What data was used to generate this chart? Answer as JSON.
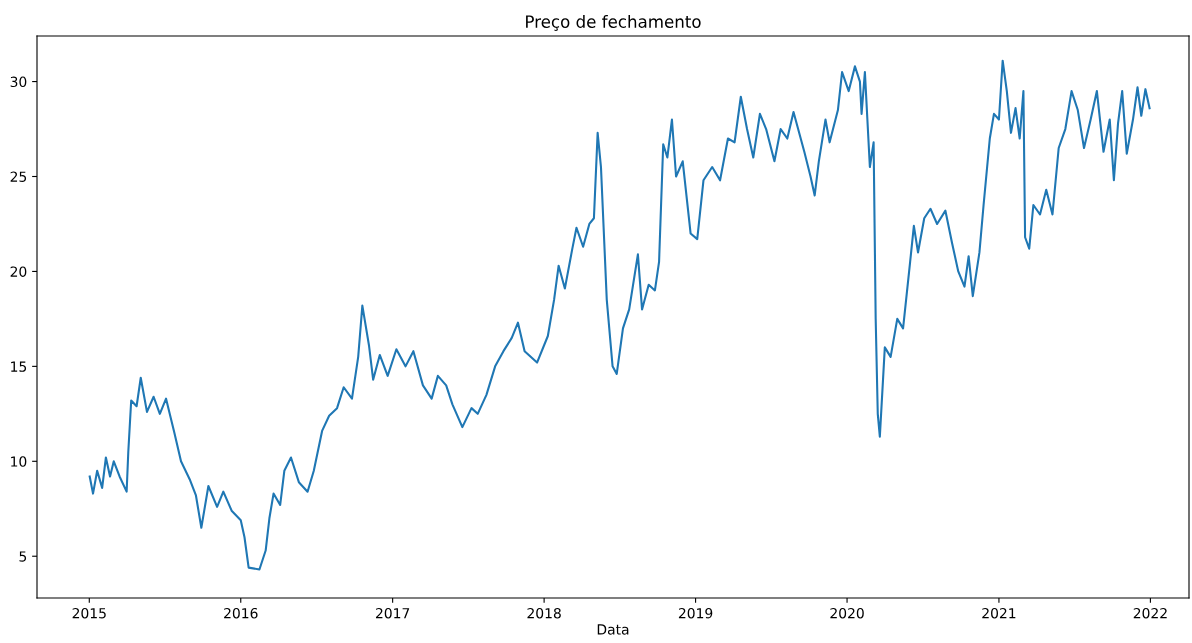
{
  "chart_data": {
    "type": "line",
    "title": "Preço de fechamento",
    "xlabel": "Data",
    "xlim": [
      "2014-08-28",
      "2022-04-04"
    ],
    "ylim": [
      2.8,
      32.4
    ],
    "xticks": [
      {
        "value": "2015",
        "label": "2015"
      },
      {
        "value": "2016",
        "label": "2016"
      },
      {
        "value": "2017",
        "label": "2017"
      },
      {
        "value": "2018",
        "label": "2018"
      },
      {
        "value": "2019",
        "label": "2019"
      },
      {
        "value": "2020",
        "label": "2020"
      },
      {
        "value": "2021",
        "label": "2021"
      },
      {
        "value": "2022",
        "label": "2022"
      }
    ],
    "yticks": [
      5,
      10,
      15,
      20,
      25,
      30
    ],
    "grid": false,
    "legend": false,
    "x": [
      "2015-01-02",
      "2015-01-10",
      "2015-01-20",
      "2015-02-01",
      "2015-02-10",
      "2015-02-20",
      "2015-03-01",
      "2015-03-15",
      "2015-04-01",
      "2015-04-05",
      "2015-04-12",
      "2015-04-25",
      "2015-05-05",
      "2015-05-20",
      "2015-06-05",
      "2015-06-20",
      "2015-07-05",
      "2015-07-25",
      "2015-08-10",
      "2015-09-01",
      "2015-09-15",
      "2015-09-28",
      "2015-10-15",
      "2015-11-05",
      "2015-11-20",
      "2015-12-10",
      "2016-01-01",
      "2016-01-10",
      "2016-01-20",
      "2016-02-15",
      "2016-03-01",
      "2016-03-10",
      "2016-03-20",
      "2016-04-05",
      "2016-04-15",
      "2016-05-01",
      "2016-05-20",
      "2016-06-10",
      "2016-06-25",
      "2016-07-15",
      "2016-08-01",
      "2016-08-20",
      "2016-09-05",
      "2016-09-25",
      "2016-10-10",
      "2016-10-20",
      "2016-11-05",
      "2016-11-15",
      "2016-12-01",
      "2016-12-20",
      "2017-01-10",
      "2017-02-01",
      "2017-02-20",
      "2017-03-15",
      "2017-04-05",
      "2017-04-20",
      "2017-05-10",
      "2017-05-25",
      "2017-06-18",
      "2017-07-10",
      "2017-07-25",
      "2017-08-15",
      "2017-09-05",
      "2017-09-25",
      "2017-10-15",
      "2017-10-30",
      "2017-11-15",
      "2017-12-15",
      "2018-01-10",
      "2018-01-25",
      "2018-02-05",
      "2018-02-20",
      "2018-03-10",
      "2018-03-20",
      "2018-04-05",
      "2018-04-20",
      "2018-05-01",
      "2018-05-10",
      "2018-05-18",
      "2018-06-01",
      "2018-06-15",
      "2018-06-25",
      "2018-07-10",
      "2018-07-25",
      "2018-08-15",
      "2018-08-25",
      "2018-09-10",
      "2018-09-25",
      "2018-10-05",
      "2018-10-15",
      "2018-10-25",
      "2018-11-05",
      "2018-11-15",
      "2018-12-01",
      "2018-12-20",
      "2019-01-05",
      "2019-01-20",
      "2019-02-10",
      "2019-03-01",
      "2019-03-20",
      "2019-04-05",
      "2019-04-20",
      "2019-05-05",
      "2019-05-20",
      "2019-06-05",
      "2019-06-20",
      "2019-07-10",
      "2019-07-25",
      "2019-08-10",
      "2019-08-25",
      "2019-09-20",
      "2019-10-05",
      "2019-10-15",
      "2019-10-25",
      "2019-11-10",
      "2019-11-20",
      "2019-12-10",
      "2019-12-20",
      "2020-01-05",
      "2020-01-20",
      "2020-02-01",
      "2020-02-05",
      "2020-02-13",
      "2020-02-25",
      "2020-03-05",
      "2020-03-10",
      "2020-03-15",
      "2020-03-20",
      "2020-04-01",
      "2020-04-15",
      "2020-05-01",
      "2020-05-15",
      "2020-06-01",
      "2020-06-10",
      "2020-06-20",
      "2020-07-05",
      "2020-07-20",
      "2020-08-05",
      "2020-08-25",
      "2020-09-10",
      "2020-09-25",
      "2020-10-10",
      "2020-10-20",
      "2020-10-30",
      "2020-11-15",
      "2020-11-25",
      "2020-12-10",
      "2020-12-20",
      "2021-01-01",
      "2021-01-10",
      "2021-01-20",
      "2021-01-30",
      "2021-02-10",
      "2021-02-20",
      "2021-03-01",
      "2021-03-05",
      "2021-03-15",
      "2021-03-25",
      "2021-04-10",
      "2021-04-25",
      "2021-05-10",
      "2021-05-25",
      "2021-06-10",
      "2021-06-25",
      "2021-07-10",
      "2021-07-25",
      "2021-08-10",
      "2021-08-25",
      "2021-09-10",
      "2021-09-25",
      "2021-10-05",
      "2021-10-15",
      "2021-10-25",
      "2021-11-05",
      "2021-11-20",
      "2021-12-01",
      "2021-12-10",
      "2021-12-20",
      "2021-12-30"
    ],
    "series": [
      {
        "color": "#1f77b4",
        "values": [
          9.2,
          8.3,
          9.5,
          8.6,
          10.2,
          9.2,
          10.0,
          9.2,
          8.4,
          10.5,
          13.2,
          12.9,
          14.4,
          12.6,
          13.4,
          12.5,
          13.3,
          11.5,
          10.0,
          9.0,
          8.2,
          6.5,
          8.7,
          7.6,
          8.4,
          7.4,
          6.9,
          6.0,
          4.4,
          4.3,
          5.3,
          7.0,
          8.3,
          7.7,
          9.5,
          10.2,
          8.9,
          8.4,
          9.5,
          11.6,
          12.4,
          12.8,
          13.9,
          13.3,
          15.5,
          18.2,
          16.1,
          14.3,
          15.6,
          14.5,
          15.9,
          15.0,
          15.8,
          14.0,
          13.3,
          14.5,
          14.0,
          13.0,
          11.8,
          12.8,
          12.5,
          13.5,
          15.0,
          15.8,
          16.5,
          17.3,
          15.8,
          15.2,
          16.6,
          18.5,
          20.3,
          19.1,
          21.2,
          22.3,
          21.3,
          22.5,
          22.8,
          27.3,
          25.5,
          18.5,
          15.0,
          14.6,
          17.0,
          18.0,
          20.9,
          18.0,
          19.3,
          19.0,
          20.5,
          26.7,
          26.0,
          28.0,
          25.0,
          25.8,
          22.0,
          21.7,
          24.8,
          25.5,
          24.8,
          27.0,
          26.8,
          29.2,
          27.5,
          26.0,
          28.3,
          27.5,
          25.8,
          27.5,
          27.0,
          28.4,
          26.3,
          25.0,
          24.0,
          25.8,
          28.0,
          26.8,
          28.5,
          30.5,
          29.5,
          30.8,
          30.0,
          28.3,
          30.5,
          25.5,
          26.8,
          17.5,
          12.5,
          11.3,
          16.0,
          15.5,
          17.5,
          17.0,
          20.5,
          22.4,
          21.0,
          22.8,
          23.3,
          22.5,
          23.2,
          21.5,
          20.0,
          19.2,
          20.8,
          18.7,
          21.0,
          23.5,
          27.0,
          28.3,
          28.0,
          31.1,
          29.5,
          27.3,
          28.6,
          27.0,
          29.5,
          21.8,
          21.2,
          23.5,
          23.0,
          24.3,
          23.0,
          26.5,
          27.5,
          29.5,
          28.5,
          26.5,
          28.0,
          29.5,
          26.3,
          28.0,
          24.8,
          27.8,
          29.5,
          26.2,
          28.0,
          29.7,
          28.2,
          29.6,
          28.6
        ]
      }
    ]
  }
}
